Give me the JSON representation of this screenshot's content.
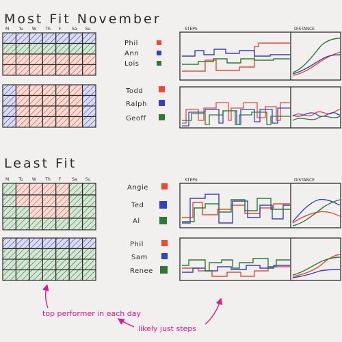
{
  "title_top": "Most Fit November",
  "title_bottom": "Least Fit",
  "days": [
    "M",
    "Tu",
    "W",
    "Th",
    "F",
    "Sa",
    "Su"
  ],
  "col_steps": "STEPS",
  "col_distance": "DISTANCE",
  "colors": {
    "red": "#ee4a33",
    "blue": "#3340c8",
    "green": "#2e7a35",
    "ink": "#2b2b2b",
    "pink": "#e0198f"
  },
  "groups": [
    {
      "people": [
        {
          "name": "Phil",
          "color": "red"
        },
        {
          "name": "Ann",
          "color": "blue"
        },
        {
          "name": "Lois",
          "color": "green"
        }
      ]
    },
    {
      "people": [
        {
          "name": "Todd",
          "color": "red"
        },
        {
          "name": "Ralph",
          "color": "blue"
        },
        {
          "name": "Geoff",
          "color": "green"
        }
      ]
    },
    {
      "people": [
        {
          "name": "Angie",
          "color": "red"
        },
        {
          "name": "Ted",
          "color": "blue"
        },
        {
          "name": "Al",
          "color": "green"
        }
      ]
    },
    {
      "people": [
        {
          "name": "Phil",
          "color": "red"
        },
        {
          "name": "Sam",
          "color": "blue"
        },
        {
          "name": "Renee",
          "color": "green"
        }
      ]
    }
  ],
  "annotations": {
    "top_performer": "top performer in each day",
    "likely_steps": "likely just steps"
  }
}
